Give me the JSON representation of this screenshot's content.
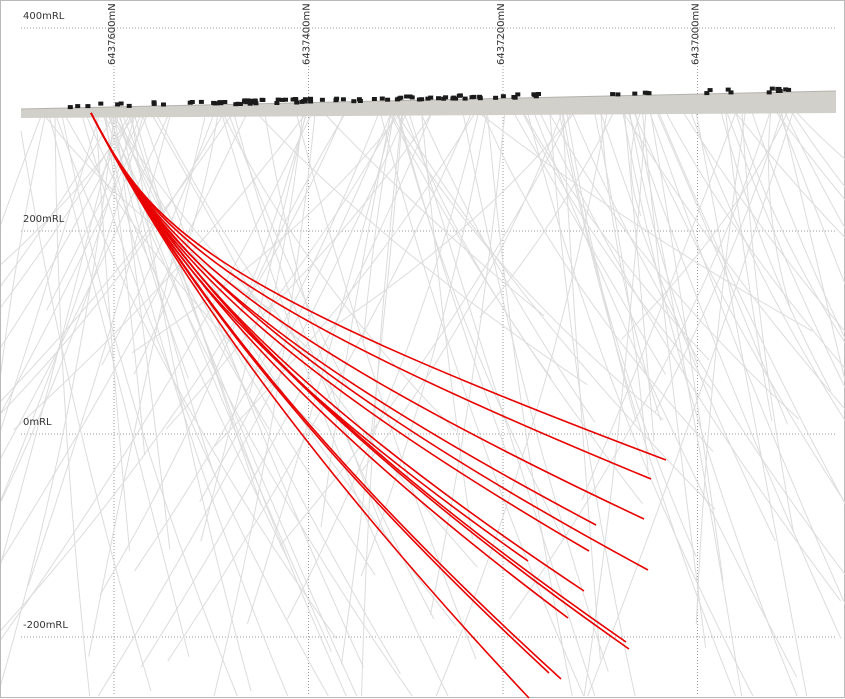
{
  "section": {
    "rl_axis": [
      {
        "label": "400mRL",
        "value": 400
      },
      {
        "label": "200mRL",
        "value": 200
      },
      {
        "label": "0mRL",
        "value": 0
      },
      {
        "label": "-200mRL",
        "value": -200
      }
    ],
    "northing_axis": [
      {
        "label": "6437600mN",
        "value": 6437600
      },
      {
        "label": "6437400mN",
        "value": 6437400
      },
      {
        "label": "6437200mN",
        "value": 6437200
      },
      {
        "label": "6437000mN",
        "value": 6437000
      }
    ]
  },
  "colors": {
    "highlight_trace": "#e80000",
    "background_trace": "#dcdcdc",
    "grid": "#9a9a9a",
    "surface": "#d2d0cb",
    "collar": "#1a1a1a"
  }
}
